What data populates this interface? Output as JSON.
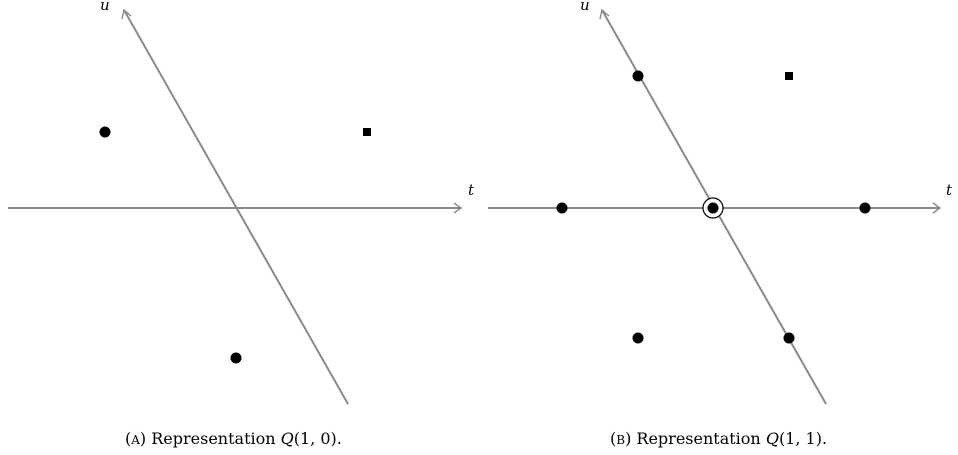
{
  "panel_a": {
    "axis_t_label": "t",
    "axis_u_label": "u",
    "caption_letter": "A",
    "caption_text": "Representation",
    "caption_math_symbol": "Q",
    "caption_math_args": "(1, 0).",
    "points": [
      {
        "shape": "dot"
      },
      {
        "shape": "square"
      },
      {
        "shape": "dot"
      }
    ]
  },
  "panel_b": {
    "axis_t_label": "t",
    "axis_u_label": "u",
    "caption_letter": "B",
    "caption_text": "Representation",
    "caption_math_symbol": "Q",
    "caption_math_args": "(1, 1).",
    "points": [
      {
        "shape": "dot"
      },
      {
        "shape": "square"
      },
      {
        "shape": "dot"
      },
      {
        "shape": "dot-circled"
      },
      {
        "shape": "dot"
      },
      {
        "shape": "dot"
      },
      {
        "shape": "dot"
      }
    ]
  }
}
